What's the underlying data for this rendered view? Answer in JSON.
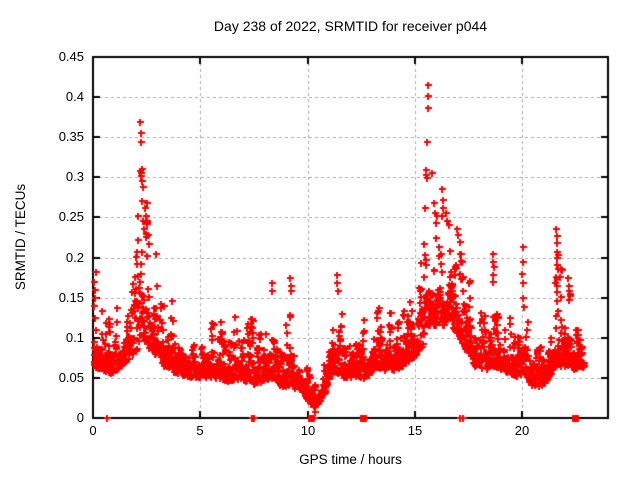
{
  "chart_data": {
    "type": "scatter",
    "title": "Day 238 of 2022, SRMTID for receiver p044",
    "xlabel": "GPS time / hours",
    "ylabel": "SRMTID / TECUs",
    "xlim": [
      0,
      24
    ],
    "ylim": [
      0,
      0.45
    ],
    "xticks": [
      {
        "v": 0,
        "label": "0"
      },
      {
        "v": 5,
        "label": "5"
      },
      {
        "v": 10,
        "label": "10"
      },
      {
        "v": 15,
        "label": "15"
      },
      {
        "v": 20,
        "label": "20"
      }
    ],
    "yticks": [
      {
        "v": 0,
        "label": "0"
      },
      {
        "v": 0.05,
        "label": "0.05"
      },
      {
        "v": 0.1,
        "label": "0.1"
      },
      {
        "v": 0.15,
        "label": "0.15"
      },
      {
        "v": 0.2,
        "label": "0.2"
      },
      {
        "v": 0.25,
        "label": "0.25"
      },
      {
        "v": 0.3,
        "label": "0.3"
      },
      {
        "v": 0.35,
        "label": "0.35"
      },
      {
        "v": 0.4,
        "label": "0.4"
      },
      {
        "v": 0.45,
        "label": "0.45"
      }
    ],
    "grid": {
      "on": true,
      "color": "#a8a8a8",
      "dash": [
        3,
        3
      ]
    },
    "frame_color": "#000000",
    "marker": {
      "shape": "plus",
      "color": "#ff0000",
      "size": 7
    },
    "sampling": {
      "start": 0.03,
      "end": 22.88,
      "step": 0.01,
      "seed": 20220238,
      "burst_min": 0.04,
      "burst_rand": 0.1
    },
    "envelope": [
      [
        0.0,
        0.065,
        0.175
      ],
      [
        0.4,
        0.06,
        0.15
      ],
      [
        0.9,
        0.055,
        0.14
      ],
      [
        1.4,
        0.065,
        0.16
      ],
      [
        1.8,
        0.075,
        0.185
      ],
      [
        2.05,
        0.085,
        0.24
      ],
      [
        2.3,
        0.1,
        0.33
      ],
      [
        2.55,
        0.09,
        0.27
      ],
      [
        2.85,
        0.08,
        0.215
      ],
      [
        3.1,
        0.07,
        0.185
      ],
      [
        3.5,
        0.06,
        0.155
      ],
      [
        4.0,
        0.055,
        0.14
      ],
      [
        4.6,
        0.05,
        0.135
      ],
      [
        5.2,
        0.05,
        0.13
      ],
      [
        5.7,
        0.05,
        0.145
      ],
      [
        6.3,
        0.045,
        0.125
      ],
      [
        6.9,
        0.05,
        0.155
      ],
      [
        7.4,
        0.04,
        0.125
      ],
      [
        7.9,
        0.045,
        0.13
      ],
      [
        8.3,
        0.05,
        0.165
      ],
      [
        8.8,
        0.04,
        0.125
      ],
      [
        9.2,
        0.04,
        0.17
      ],
      [
        9.7,
        0.035,
        0.12
      ],
      [
        10.05,
        0.02,
        0.09
      ],
      [
        10.3,
        0.012,
        0.05
      ],
      [
        10.7,
        0.025,
        0.07
      ],
      [
        11.1,
        0.05,
        0.13
      ],
      [
        11.35,
        0.055,
        0.175
      ],
      [
        11.8,
        0.05,
        0.14
      ],
      [
        12.2,
        0.05,
        0.15
      ],
      [
        12.7,
        0.05,
        0.135
      ],
      [
        13.0,
        0.055,
        0.15
      ],
      [
        13.5,
        0.06,
        0.145
      ],
      [
        14.0,
        0.06,
        0.155
      ],
      [
        14.5,
        0.065,
        0.165
      ],
      [
        15.0,
        0.075,
        0.19
      ],
      [
        15.35,
        0.09,
        0.245
      ],
      [
        15.65,
        0.115,
        0.3
      ],
      [
        15.95,
        0.115,
        0.285
      ],
      [
        16.35,
        0.115,
        0.29
      ],
      [
        16.7,
        0.115,
        0.27
      ],
      [
        17.05,
        0.1,
        0.24
      ],
      [
        17.35,
        0.085,
        0.21
      ],
      [
        17.8,
        0.065,
        0.15
      ],
      [
        18.3,
        0.06,
        0.14
      ],
      [
        18.7,
        0.065,
        0.205
      ],
      [
        19.1,
        0.06,
        0.14
      ],
      [
        19.6,
        0.05,
        0.13
      ],
      [
        20.05,
        0.055,
        0.21
      ],
      [
        20.5,
        0.04,
        0.115
      ],
      [
        20.95,
        0.04,
        0.12
      ],
      [
        21.4,
        0.055,
        0.15
      ],
      [
        21.7,
        0.065,
        0.23
      ],
      [
        22.1,
        0.065,
        0.175
      ],
      [
        22.5,
        0.06,
        0.135
      ],
      [
        22.9,
        0.06,
        0.115
      ]
    ],
    "clusters": [
      {
        "name": "start-column",
        "points": [
          [
            0.05,
            0.17
          ],
          [
            0.07,
            0.16
          ],
          [
            0.1,
            0.15
          ],
          [
            0.06,
            0.14
          ],
          [
            0.08,
            0.125
          ],
          [
            0.12,
            0.11
          ],
          [
            0.05,
            0.095
          ],
          [
            0.1,
            0.085
          ],
          [
            0.15,
            0.182
          ]
        ]
      },
      {
        "name": "morning-peak",
        "points": [
          [
            2.2,
            0.369
          ],
          [
            2.23,
            0.355
          ],
          [
            2.26,
            0.344
          ],
          [
            2.2,
            0.308
          ],
          [
            2.24,
            0.302
          ],
          [
            2.3,
            0.296
          ],
          [
            2.34,
            0.288
          ],
          [
            2.28,
            0.27
          ],
          [
            2.12,
            0.252
          ],
          [
            2.4,
            0.262
          ],
          [
            2.46,
            0.252
          ],
          [
            2.5,
            0.246
          ],
          [
            2.56,
            0.228
          ],
          [
            2.62,
            0.217
          ],
          [
            2.08,
            0.222
          ],
          [
            2.95,
            0.205
          ],
          [
            2.32,
            0.245
          ],
          [
            2.38,
            0.235
          ]
        ]
      },
      {
        "name": "afternoon-peak",
        "points": [
          [
            15.62,
            0.415
          ],
          [
            15.6,
            0.401
          ],
          [
            15.59,
            0.386
          ],
          [
            15.56,
            0.344
          ],
          [
            15.52,
            0.309
          ],
          [
            15.54,
            0.303
          ],
          [
            15.55,
            0.299
          ],
          [
            15.48,
            0.262
          ],
          [
            15.8,
            0.305
          ],
          [
            15.9,
            0.268
          ],
          [
            15.95,
            0.255
          ],
          [
            16.05,
            0.252
          ],
          [
            16.28,
            0.285
          ],
          [
            16.3,
            0.272
          ],
          [
            16.32,
            0.262
          ],
          [
            16.27,
            0.252
          ],
          [
            16.45,
            0.255
          ],
          [
            16.5,
            0.246
          ],
          [
            16.6,
            0.24
          ],
          [
            16.98,
            0.235
          ],
          [
            17.02,
            0.228
          ],
          [
            17.08,
            0.22
          ],
          [
            17.15,
            0.205
          ]
        ]
      },
      {
        "name": "mid-day-spikes",
        "points": [
          [
            8.32,
            0.168
          ],
          [
            8.35,
            0.158
          ],
          [
            9.2,
            0.175
          ],
          [
            9.22,
            0.165
          ],
          [
            9.25,
            0.158
          ],
          [
            11.35,
            0.178
          ],
          [
            11.38,
            0.168
          ],
          [
            11.4,
            0.158
          ]
        ]
      },
      {
        "name": "evening-clusters",
        "points": [
          [
            18.62,
            0.205
          ],
          [
            18.65,
            0.195
          ],
          [
            18.68,
            0.188
          ],
          [
            18.63,
            0.178
          ],
          [
            18.66,
            0.17
          ],
          [
            20.02,
            0.213
          ],
          [
            20.05,
            0.195
          ],
          [
            20.0,
            0.18
          ],
          [
            20.06,
            0.168
          ],
          [
            20.03,
            0.15
          ],
          [
            20.08,
            0.138
          ],
          [
            21.58,
            0.235
          ],
          [
            21.62,
            0.227
          ],
          [
            21.6,
            0.218
          ],
          [
            21.63,
            0.207
          ],
          [
            21.66,
            0.203
          ],
          [
            21.6,
            0.2
          ],
          [
            21.68,
            0.186
          ],
          [
            21.55,
            0.168
          ],
          [
            21.6,
            0.164
          ],
          [
            22.15,
            0.175
          ],
          [
            22.2,
            0.165
          ],
          [
            22.18,
            0.158
          ],
          [
            22.22,
            0.155
          ],
          [
            22.25,
            0.152
          ],
          [
            22.17,
            0.147
          ]
        ]
      }
    ],
    "extra_points": [
      [
        10.35,
        0.008
      ],
      [
        10.5,
        0.018
      ]
    ],
    "zero_marks": [
      {
        "x": 0.65,
        "style": "plus"
      },
      {
        "x": 7.42,
        "style": "plus"
      },
      {
        "x": 7.52,
        "style": "plus"
      },
      {
        "x": 10.18,
        "style": "square"
      },
      {
        "x": 10.3,
        "style": "plus"
      },
      {
        "x": 12.6,
        "style": "square"
      },
      {
        "x": 17.1,
        "style": "plus"
      },
      {
        "x": 17.25,
        "style": "plus"
      },
      {
        "x": 22.45,
        "style": "square"
      }
    ]
  }
}
